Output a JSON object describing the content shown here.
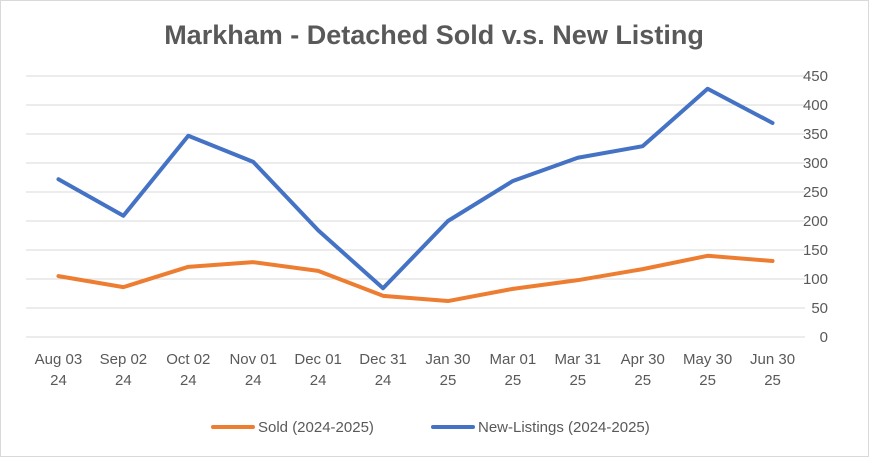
{
  "chart_data": {
    "type": "line",
    "title": "Markham - Detached Sold v.s. New Listing",
    "xlabel": "",
    "ylabel": "",
    "categories": [
      [
        "Aug 03",
        "24"
      ],
      [
        "Sep 02",
        "24"
      ],
      [
        "Oct 02",
        "24"
      ],
      [
        "Nov 01",
        "24"
      ],
      [
        "Dec 01",
        "24"
      ],
      [
        "Dec 31",
        "24"
      ],
      [
        "Jan 30",
        "25"
      ],
      [
        "Mar 01",
        "25"
      ],
      [
        "Mar 31",
        "25"
      ],
      [
        "Apr 30",
        "25"
      ],
      [
        "May 30",
        "25"
      ],
      [
        "Jun 30",
        "25"
      ]
    ],
    "ylim": [
      0,
      450
    ],
    "yticks": [
      0,
      50,
      100,
      150,
      200,
      250,
      300,
      350,
      400,
      450
    ],
    "y_axis_side": "right",
    "grid": true,
    "legend_position": "bottom",
    "series": [
      {
        "name": "Sold (2024-2025)",
        "color": "#ed7d31",
        "values": [
          105,
          86,
          121,
          129,
          114,
          71,
          62,
          83,
          98,
          117,
          140,
          131
        ]
      },
      {
        "name": "New-Listings (2024-2025)",
        "color": "#4472c4",
        "values": [
          272,
          209,
          347,
          302,
          184,
          84,
          200,
          269,
          309,
          329,
          428,
          369
        ]
      }
    ]
  }
}
